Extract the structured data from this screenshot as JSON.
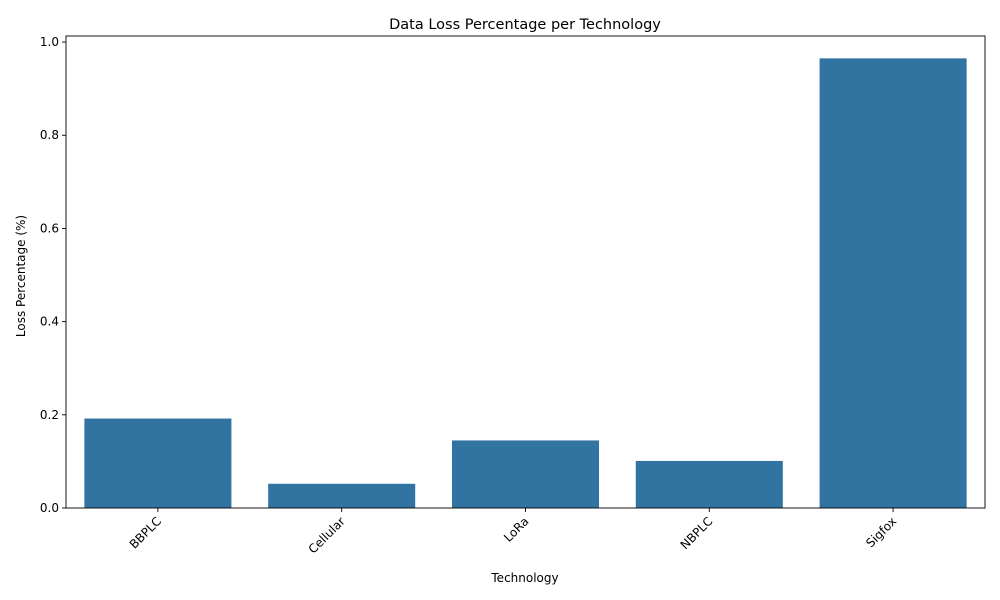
{
  "chart_data": {
    "type": "bar",
    "title": "Data Loss Percentage per Technology",
    "xlabel": "Technology",
    "ylabel": "Loss Percentage (%)",
    "categories": [
      "BBPLC",
      "Cellular",
      "LoRa",
      "NBPLC",
      "Sigfox"
    ],
    "values": [
      0.192,
      0.052,
      0.145,
      0.101,
      0.965
    ],
    "ylim": [
      0,
      1.013
    ],
    "yticks": [
      0.0,
      0.2,
      0.4,
      0.6,
      0.8,
      1.0
    ],
    "ytick_labels": [
      "0.0",
      "0.2",
      "0.4",
      "0.6",
      "0.8",
      "1.0"
    ],
    "bar_color": "#3274a1",
    "grid": false,
    "legend": "none"
  }
}
